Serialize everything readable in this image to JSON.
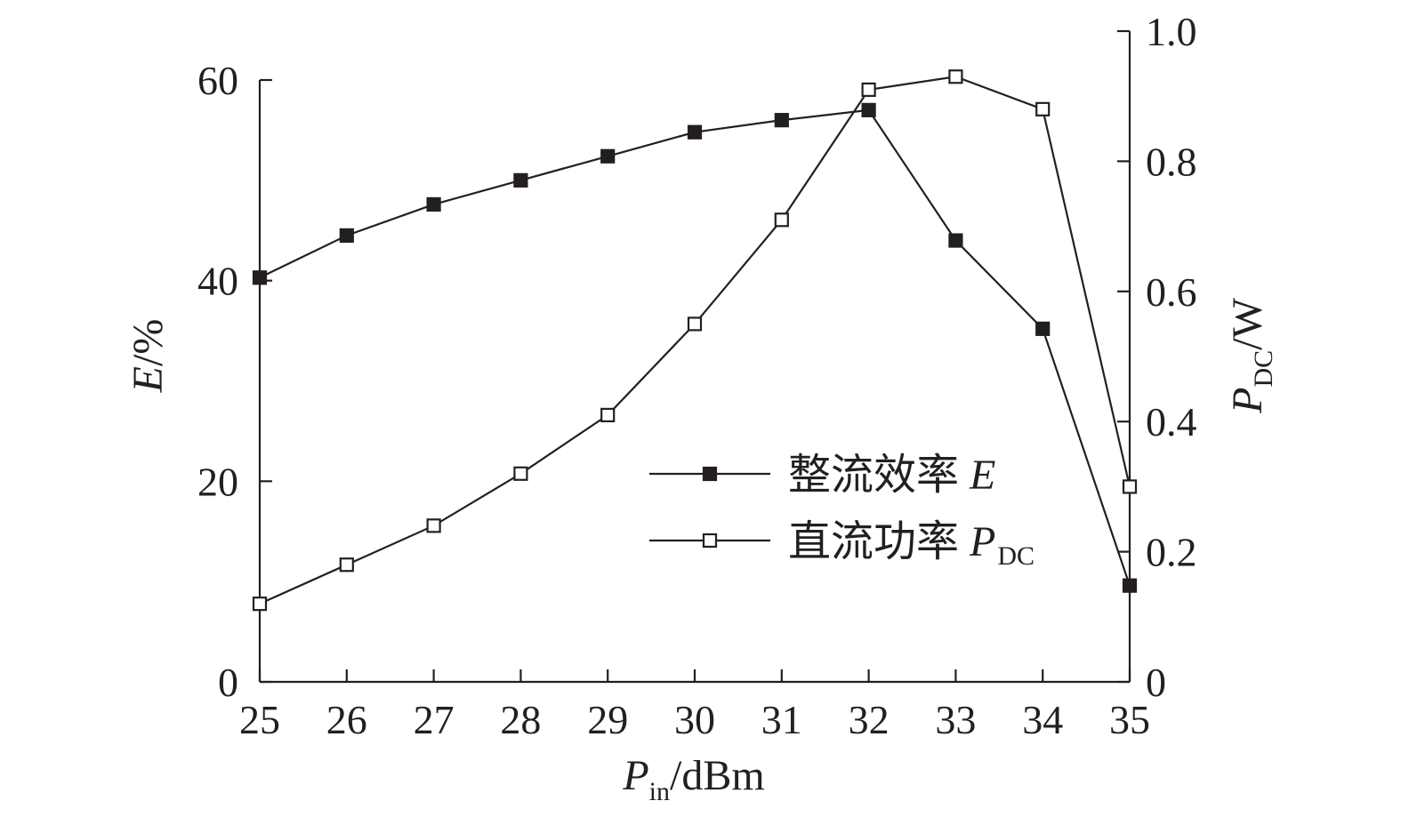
{
  "chart_data": {
    "type": "line",
    "x": [
      25,
      26,
      27,
      28,
      29,
      30,
      31,
      32,
      33,
      34,
      35
    ],
    "xlim": [
      25,
      35
    ],
    "xticks": [
      "25",
      "26",
      "27",
      "28",
      "29",
      "30",
      "31",
      "32",
      "33",
      "34",
      "35"
    ],
    "xlabel": {
      "main": "P",
      "sub": "in",
      "unit": "/dBm"
    },
    "y_left": {
      "label": "E/%",
      "ylim": [
        0,
        60
      ],
      "ticks": [
        "0",
        "20",
        "40",
        "60"
      ]
    },
    "y_right": {
      "label": {
        "main": "P",
        "sub": "DC",
        "unit": "/W"
      },
      "ylim": [
        0,
        1.0
      ],
      "ticks": [
        "0",
        "0.2",
        "0.4",
        "0.6",
        "0.8",
        "1.0"
      ]
    },
    "series": [
      {
        "name": "整流效率 E",
        "axis": "left",
        "marker": "filled-square",
        "values": [
          40.3,
          44.5,
          47.6,
          50.0,
          52.4,
          54.8,
          56.0,
          57.0,
          44.0,
          35.2,
          9.6
        ]
      },
      {
        "name": "直流功率 P_DC",
        "axis": "right",
        "marker": "open-square",
        "values": [
          0.12,
          0.18,
          0.24,
          0.32,
          0.41,
          0.55,
          0.71,
          0.91,
          0.93,
          0.88,
          0.3
        ]
      }
    ],
    "legend": {
      "position": "center-right",
      "entries": [
        {
          "main": "整流效率 ",
          "italic": "E",
          "sub": ""
        },
        {
          "main": "直流功率 ",
          "italic": "P",
          "sub": "DC"
        }
      ]
    },
    "grid": false,
    "colors": {
      "ink": "#231f20",
      "background": "#ffffff"
    }
  }
}
